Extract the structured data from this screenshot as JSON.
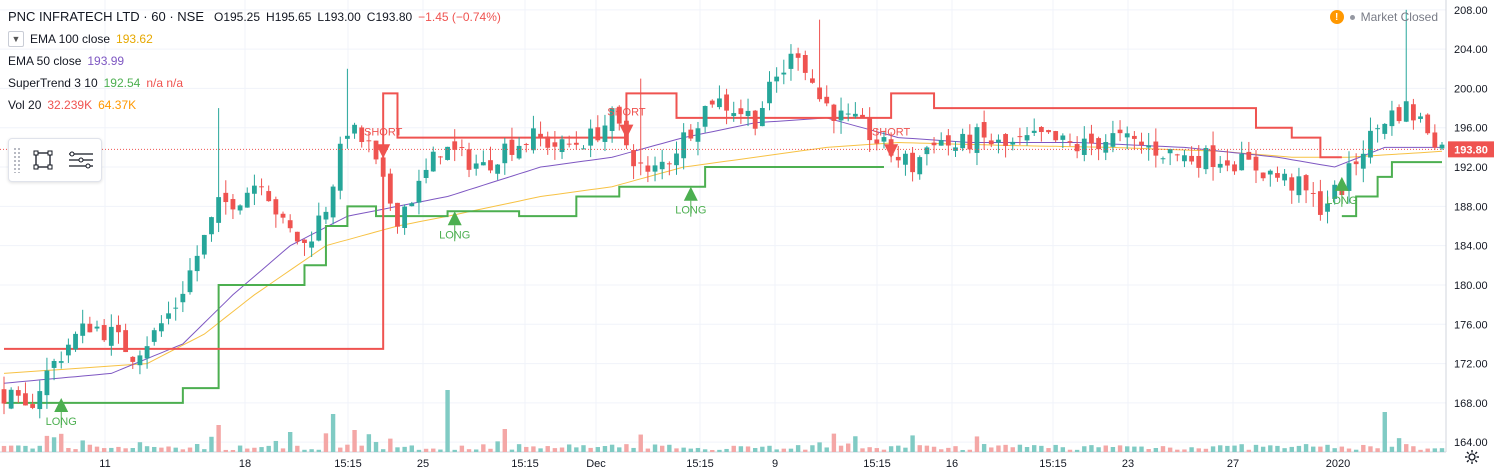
{
  "header": {
    "title": "PNC INFRATECH LTD · 60 · NSE",
    "open": "O195.25",
    "high": "H195.65",
    "low": "L193.00",
    "close": "C193.80",
    "change": "−1.45 (−0.74%)"
  },
  "indicators": [
    {
      "name": "EMA 100 close",
      "value": "193.62",
      "color": "#f7c244"
    },
    {
      "name": "EMA 50 close",
      "value": "193.99",
      "color": "#7e57c2"
    },
    {
      "name": "SuperTrend 3 10",
      "value": "192.54",
      "extra": "n/a n/a",
      "color": "#4caf50",
      "extra_color": "#ef5350"
    },
    {
      "name": "Vol 20",
      "value": "32.239K",
      "extra": "64.37K",
      "color": "#ef5350",
      "extra_color": "#ff9800"
    }
  ],
  "status": {
    "market": "Market Closed"
  },
  "toolbar": {
    "icons": [
      "frame-icon",
      "menu-lines-icon"
    ]
  },
  "colors": {
    "up": "#26a69a",
    "down": "#ef5350",
    "supertrend_up": "#4caf50",
    "supertrend_down": "#ef5350",
    "ema100": "#f7c244",
    "ema50": "#7e57c2",
    "vol_up": "#80cbc4",
    "vol_down": "#f4a7a6"
  },
  "chart_data": {
    "type": "candlestick",
    "title": "PNC INFRATECH LTD · 60 · NSE",
    "ylim": [
      163,
      209
    ],
    "y_ticks": [
      "164.00",
      "168.00",
      "172.00",
      "176.00",
      "180.00",
      "184.00",
      "188.00",
      "192.00",
      "196.00",
      "200.00",
      "204.00",
      "208.00"
    ],
    "x_ticks": [
      "11",
      "18",
      "15:15",
      "25",
      "15:15",
      "Dec",
      "15:15",
      "9",
      "15:15",
      "16",
      "15:15",
      "23",
      "27",
      "2020"
    ],
    "last_price": "193.80",
    "signals": [
      {
        "label": "LONG",
        "type": "long",
        "bar": 8,
        "price": 168.5
      },
      {
        "label": "SHORT",
        "type": "short",
        "bar": 53,
        "price": 193.5
      },
      {
        "label": "LONG",
        "type": "long",
        "bar": 63,
        "price": 187.5
      },
      {
        "label": "SHORT",
        "type": "short",
        "bar": 87,
        "price": 195.5
      },
      {
        "label": "LONG",
        "type": "long",
        "bar": 96,
        "price": 190.0
      },
      {
        "label": "SHORT",
        "type": "short",
        "bar": 124,
        "price": 193.5
      },
      {
        "label": "LONG",
        "type": "long",
        "bar": 187,
        "price": 191.0
      }
    ],
    "close_path": [
      [
        0,
        169
      ],
      [
        3,
        167
      ],
      [
        6,
        171
      ],
      [
        9,
        174
      ],
      [
        12,
        176
      ],
      [
        15,
        175
      ],
      [
        18,
        173
      ],
      [
        21,
        175
      ],
      [
        24,
        178
      ],
      [
        27,
        183
      ],
      [
        30,
        188
      ],
      [
        33,
        189
      ],
      [
        36,
        191
      ],
      [
        39,
        186
      ],
      [
        42,
        184
      ],
      [
        45,
        188
      ],
      [
        48,
        196
      ],
      [
        51,
        194
      ],
      [
        53,
        190
      ],
      [
        55,
        187
      ],
      [
        58,
        190
      ],
      [
        61,
        194
      ],
      [
        64,
        193
      ],
      [
        67,
        192
      ],
      [
        70,
        194
      ],
      [
        74,
        195
      ],
      [
        78,
        194
      ],
      [
        82,
        195
      ],
      [
        85,
        197
      ],
      [
        88,
        193
      ],
      [
        90,
        191
      ],
      [
        93,
        193
      ],
      [
        96,
        196
      ],
      [
        99,
        199
      ],
      [
        102,
        198
      ],
      [
        105,
        197
      ],
      [
        108,
        201
      ],
      [
        111,
        204
      ],
      [
        114,
        199
      ],
      [
        117,
        197
      ],
      [
        120,
        196
      ],
      [
        123,
        194
      ],
      [
        125,
        193
      ],
      [
        127,
        192
      ],
      [
        130,
        195
      ],
      [
        133,
        194
      ],
      [
        136,
        195
      ],
      [
        140,
        194
      ],
      [
        145,
        195
      ],
      [
        150,
        194
      ],
      [
        155,
        195
      ],
      [
        160,
        194
      ],
      [
        165,
        193
      ],
      [
        170,
        193
      ],
      [
        175,
        192
      ],
      [
        178,
        191
      ],
      [
        181,
        190
      ],
      [
        184,
        188
      ],
      [
        187,
        190
      ],
      [
        190,
        194
      ],
      [
        193,
        197
      ],
      [
        196,
        198
      ],
      [
        199,
        196
      ],
      [
        201,
        194
      ]
    ],
    "supertrend": {
      "up": [
        [
          0,
          168
        ],
        [
          20,
          168
        ],
        [
          25,
          169.5
        ],
        [
          30,
          180
        ],
        [
          35,
          180
        ],
        [
          40,
          180
        ],
        [
          42,
          182
        ],
        [
          45,
          186
        ],
        [
          48,
          188
        ],
        [
          52,
          187
        ],
        [
          62,
          187
        ],
        [
          62,
          187.5
        ],
        [
          72,
          187
        ],
        [
          78,
          187
        ],
        [
          80,
          189
        ],
        [
          84,
          189
        ],
        [
          86,
          190
        ],
        [
          88,
          190
        ],
        [
          92,
          190
        ],
        [
          96,
          190
        ],
        [
          98,
          192
        ],
        [
          110,
          192
        ],
        [
          123,
          192
        ]
      ],
      "down": [
        [
          0,
          173.5
        ],
        [
          6,
          173.5
        ],
        [
          53,
          199.5
        ],
        [
          55,
          195
        ],
        [
          58,
          195
        ],
        [
          63,
          195
        ],
        [
          87,
          199.5
        ],
        [
          92,
          199.5
        ],
        [
          94,
          197
        ],
        [
          95,
          197
        ],
        [
          124,
          199.5
        ],
        [
          130,
          198
        ],
        [
          160,
          198
        ],
        [
          170,
          198
        ],
        [
          175,
          196
        ],
        [
          180,
          195
        ],
        [
          184,
          193
        ],
        [
          187,
          193
        ]
      ],
      "up2": [
        [
          187,
          187
        ],
        [
          189,
          189
        ],
        [
          192,
          191
        ],
        [
          194,
          192.5
        ],
        [
          201,
          192.5
        ]
      ]
    },
    "ema100": [
      [
        0,
        171
      ],
      [
        20,
        172
      ],
      [
        28,
        175
      ],
      [
        35,
        179
      ],
      [
        45,
        184
      ],
      [
        55,
        186
      ],
      [
        62,
        187
      ],
      [
        75,
        189
      ],
      [
        85,
        190
      ],
      [
        95,
        192
      ],
      [
        105,
        193
      ],
      [
        115,
        194
      ],
      [
        125,
        194.5
      ],
      [
        140,
        194.2
      ],
      [
        155,
        194
      ],
      [
        170,
        193.6
      ],
      [
        180,
        193
      ],
      [
        188,
        193
      ],
      [
        201,
        193.6
      ]
    ],
    "ema50": [
      [
        0,
        170
      ],
      [
        15,
        171
      ],
      [
        25,
        174
      ],
      [
        32,
        179
      ],
      [
        40,
        184
      ],
      [
        48,
        187
      ],
      [
        55,
        188
      ],
      [
        62,
        189
      ],
      [
        75,
        192
      ],
      [
        85,
        193
      ],
      [
        95,
        195
      ],
      [
        105,
        196.5
      ],
      [
        115,
        197
      ],
      [
        125,
        195
      ],
      [
        135,
        194.5
      ],
      [
        150,
        194.5
      ],
      [
        165,
        194
      ],
      [
        178,
        193
      ],
      [
        186,
        192
      ],
      [
        193,
        194
      ],
      [
        201,
        194
      ]
    ]
  }
}
